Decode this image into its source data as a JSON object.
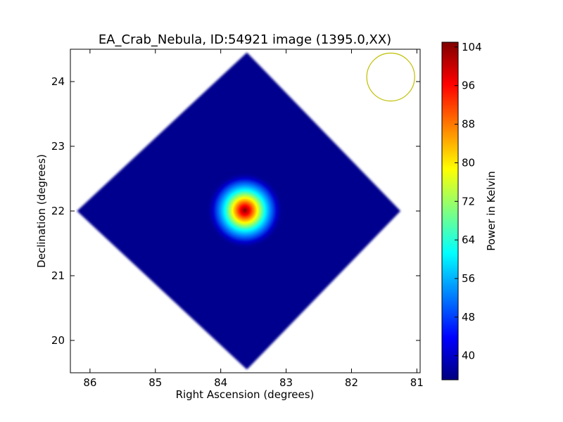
{
  "chart_data": {
    "type": "heatmap",
    "title": "EA_Crab_Nebula, ID:54921 image (1395.0,XX)",
    "xlabel": "Right Ascension (degrees)",
    "ylabel": "Declination (degrees)",
    "xlim": [
      86.3,
      80.95
    ],
    "ylim": [
      19.5,
      24.5
    ],
    "x_ticks": [
      86,
      85,
      84,
      83,
      82,
      81
    ],
    "y_ticks": [
      20,
      21,
      22,
      23,
      24
    ],
    "colorbar": {
      "label": "Power in Kelvin",
      "range": [
        35,
        105
      ],
      "ticks": [
        40,
        48,
        56,
        64,
        72,
        80,
        88,
        96,
        104
      ],
      "colormap": [
        "#00007f",
        "#0000ff",
        "#007fff",
        "#00ffff",
        "#7fff7f",
        "#ffff00",
        "#ff7f00",
        "#ff0000",
        "#7f0000"
      ]
    },
    "coverage": {
      "shape": "diamond",
      "corners": [
        {
          "ra": 83.6,
          "dec": 24.45
        },
        {
          "ra": 81.25,
          "dec": 22.0
        },
        {
          "ra": 83.6,
          "dec": 19.55
        },
        {
          "ra": 86.2,
          "dec": 22.0
        }
      ],
      "background_value": 36
    },
    "source": {
      "ra": 83.63,
      "dec": 22.01,
      "peak_value": 105
    },
    "beam": {
      "ra": 81.4,
      "dec": 24.07,
      "radius_deg": 0.37,
      "color": "#bfbf00"
    },
    "grid": false
  }
}
